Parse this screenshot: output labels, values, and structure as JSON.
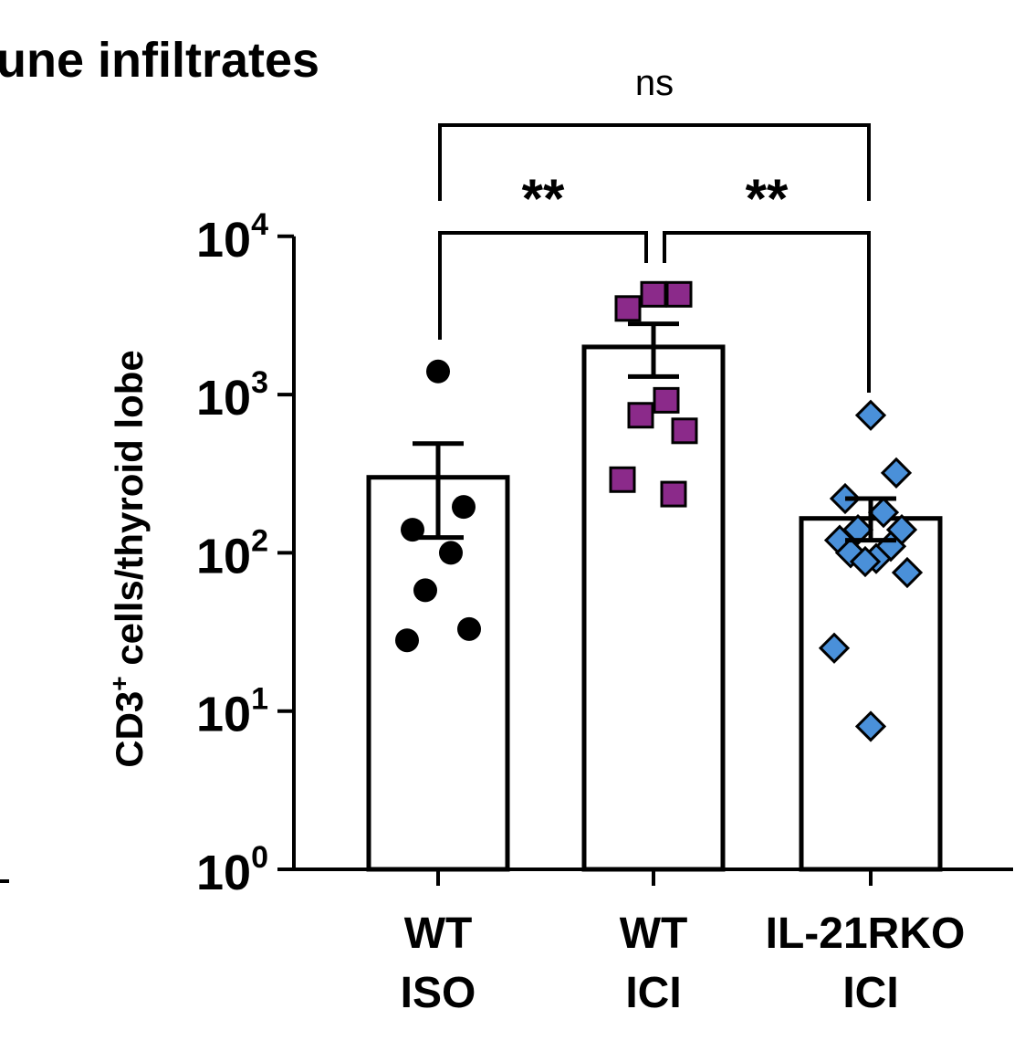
{
  "panel_title": "une infiltrates",
  "chart_data": {
    "type": "bar",
    "scale": "log",
    "ylim_exp": [
      0,
      4
    ],
    "ylabel_main": "CD3",
    "ylabel_sup": "+",
    "ylabel_rest": " cells/thyroid lobe",
    "yticks": [
      {
        "base": "10",
        "exp": "0",
        "value": 1
      },
      {
        "base": "10",
        "exp": "1",
        "value": 10
      },
      {
        "base": "10",
        "exp": "2",
        "value": 100
      },
      {
        "base": "10",
        "exp": "3",
        "value": 1000
      },
      {
        "base": "10",
        "exp": "4",
        "value": 10000
      }
    ],
    "categories": [
      {
        "line1": "WT",
        "line2": "ISO"
      },
      {
        "line1": "WT",
        "line2": "ICI"
      },
      {
        "line1": "IL-21RKO",
        "line2": "ICI"
      }
    ],
    "groups": [
      {
        "marker": "circle",
        "color": "#000000",
        "mean": 300,
        "sem_low": 125,
        "sem_high": 490,
        "points": [
          1400,
          195,
          140,
          100,
          58,
          33,
          28
        ]
      },
      {
        "marker": "square",
        "color": "#8b2a8a",
        "mean": 2000,
        "sem_low": 1300,
        "sem_high": 2800,
        "points": [
          4300,
          4300,
          3500,
          920,
          740,
          590,
          290,
          235
        ]
      },
      {
        "marker": "diamond",
        "color": "#4a90d9",
        "mean": 165,
        "sem_low": 120,
        "sem_high": 220,
        "points": [
          740,
          320,
          220,
          180,
          140,
          140,
          120,
          110,
          100,
          92,
          88,
          75,
          25,
          8
        ]
      }
    ],
    "comparisons": [
      {
        "groups": [
          0,
          1
        ],
        "label": "**"
      },
      {
        "groups": [
          1,
          2
        ],
        "label": "**"
      },
      {
        "groups": [
          0,
          2
        ],
        "label": "ns"
      }
    ]
  }
}
